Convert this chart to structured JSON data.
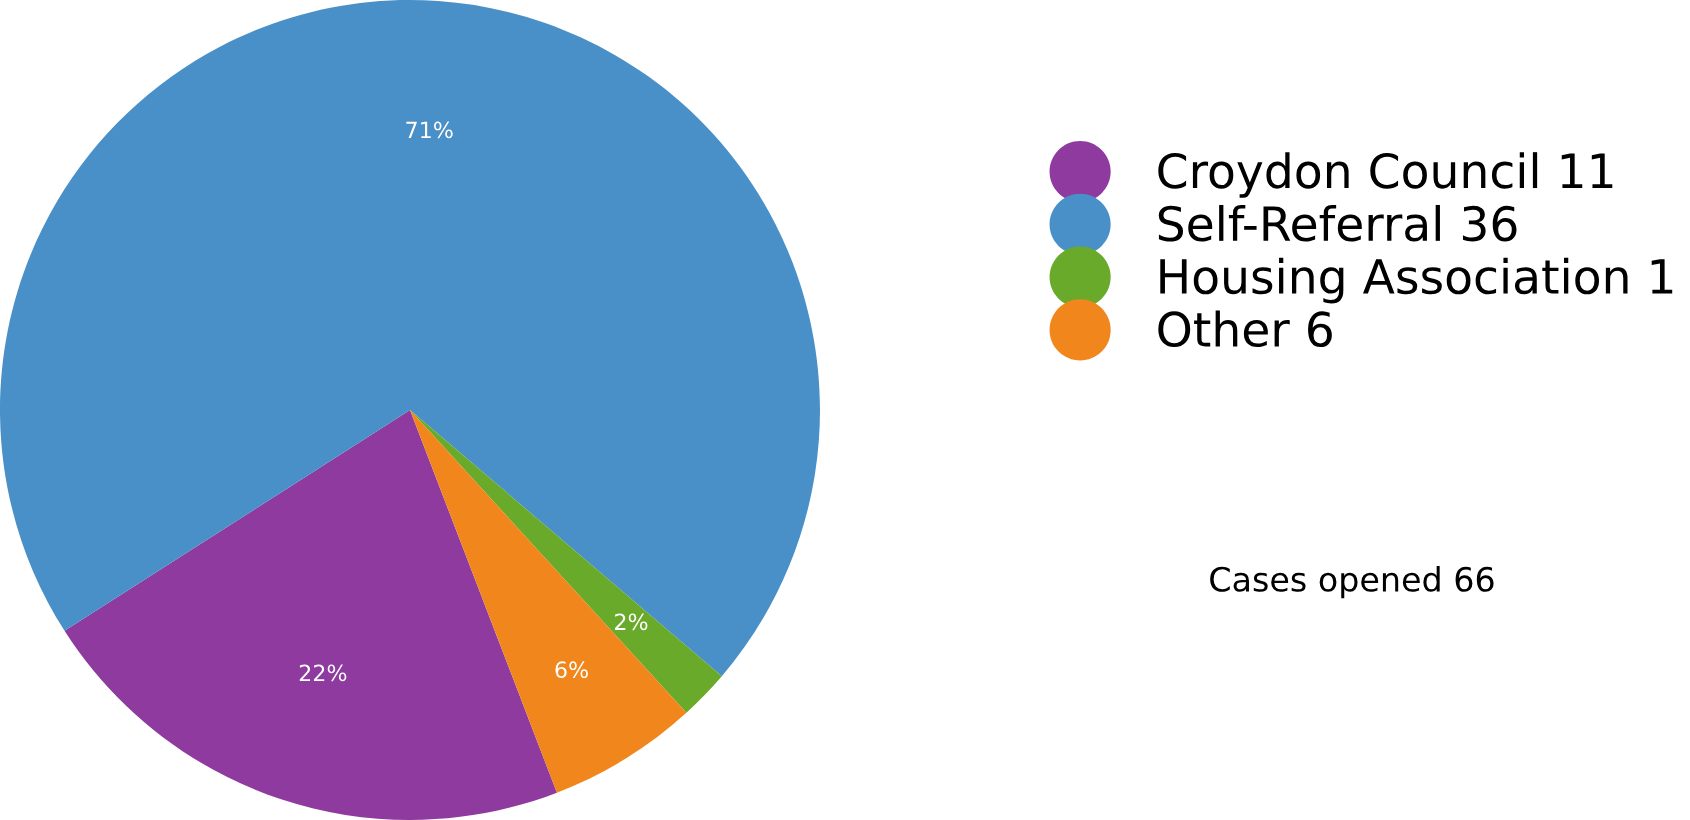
{
  "chart_data": {
    "type": "pie",
    "categories": [
      "Croydon Council 11",
      "Self-Referral 36",
      "Housing Association 1",
      "Other 6"
    ],
    "values": [
      22,
      71,
      2,
      6
    ],
    "colors": [
      "#8e3a9e",
      "#4a90c8",
      "#6aaa2a",
      "#f0861c"
    ],
    "value_labels": [
      "22%",
      "71%",
      "2%",
      "6%"
    ],
    "legend": "right",
    "annotations": [
      "Cases opened 66"
    ]
  }
}
